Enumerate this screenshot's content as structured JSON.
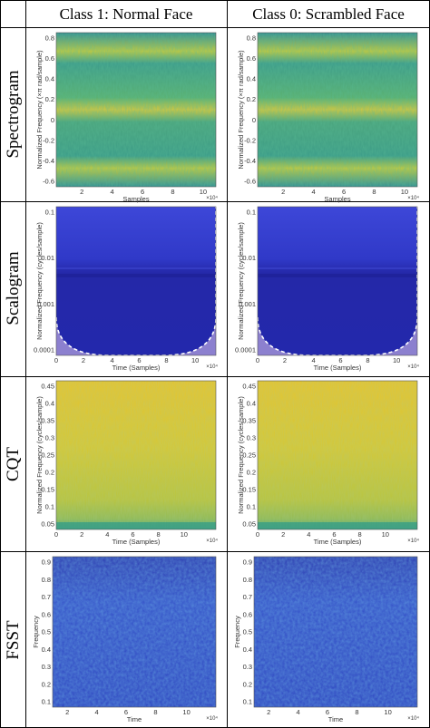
{
  "columns": [
    {
      "label": "Class 1: Normal Face"
    },
    {
      "label": "Class 0: Scrambled Face"
    }
  ],
  "rows": [
    {
      "label": "Spectrogram",
      "ylabel": "Normalized Frequency (×π rad/sample)",
      "xlabel": "Samples",
      "xticks": [
        "2",
        "4",
        "6",
        "8",
        "10"
      ],
      "yticks": [
        "0.8",
        "0.6",
        "0.4",
        "0.2",
        "0",
        "-0.2",
        "-0.4",
        "-0.6"
      ],
      "exponent": "×10⁴"
    },
    {
      "label": "Scalogram",
      "ylabel": "Normalized Frequency (cycles/sample)",
      "xlabel": "Time (Samples)",
      "xticks": [
        "0",
        "2",
        "4",
        "6",
        "8",
        "10"
      ],
      "yticks": [
        "0.1",
        "0.01",
        "0.001",
        "0.0001"
      ],
      "exponent": "×10⁴"
    },
    {
      "label": "CQT",
      "ylabel": "Normalized Frequency (cycles/sample)",
      "xlabel": "Time (Samples)",
      "xticks": [
        "0",
        "2",
        "4",
        "6",
        "8",
        "10"
      ],
      "yticks": [
        "0.45",
        "0.4",
        "0.35",
        "0.3",
        "0.25",
        "0.2",
        "0.15",
        "0.1",
        "0.05"
      ],
      "exponent": "×10⁴"
    },
    {
      "label": "FSST",
      "ylabel": "Frequency",
      "xlabel": "Time",
      "xticks": [
        "2",
        "4",
        "6",
        "8",
        "10"
      ],
      "yticks": [
        "0.9",
        "0.8",
        "0.7",
        "0.6",
        "0.5",
        "0.4",
        "0.3",
        "0.2",
        "0.1"
      ],
      "exponent": "×10⁴"
    }
  ],
  "colors": {
    "spectrogram": [
      "#3a9a88",
      "#79bf5a",
      "#d8cc3a"
    ],
    "scalogram": [
      "#2b2fb8",
      "#3c46d6",
      "#8a7fcf"
    ],
    "cqt": [
      "#e3c52f",
      "#b8c53a",
      "#5aa97a"
    ],
    "fsst": [
      "#2f3fb5",
      "#3d60d8",
      "#38b7c8"
    ]
  }
}
